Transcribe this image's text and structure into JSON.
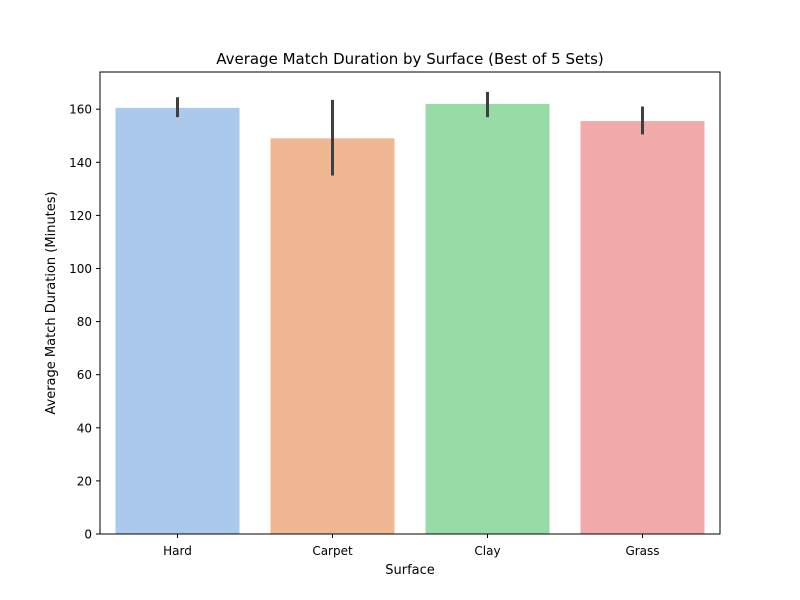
{
  "chart_data": {
    "type": "bar",
    "title": "Average Match Duration by Surface (Best of 5 Sets)",
    "xlabel": "Surface",
    "ylabel": "Average Match Duration (Minutes)",
    "categories": [
      "Hard",
      "Carpet",
      "Clay",
      "Grass"
    ],
    "values": [
      160.5,
      149,
      162,
      155.5
    ],
    "error_bars": [
      {
        "low": 157,
        "high": 164.5
      },
      {
        "low": 135,
        "high": 163.5
      },
      {
        "low": 157,
        "high": 166.5
      },
      {
        "low": 150.5,
        "high": 161
      }
    ],
    "colors": [
      "#abc9ea",
      "#efb792",
      "#98dba7",
      "#f1aaa9"
    ],
    "error_color": "#3f3f3f",
    "yticks": [
      0,
      20,
      40,
      60,
      80,
      100,
      120,
      140,
      160
    ],
    "ylim": [
      0,
      174
    ],
    "grid": false,
    "legend": false
  }
}
